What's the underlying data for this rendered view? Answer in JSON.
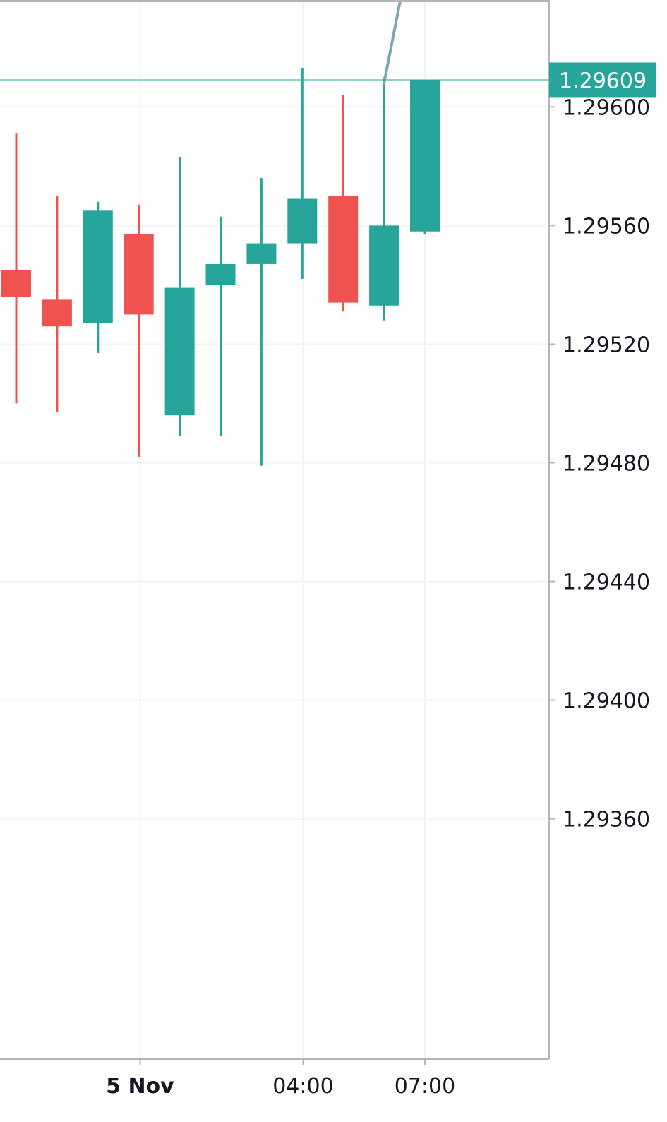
{
  "chart_data": {
    "type": "candlestick",
    "title": "",
    "xlabel": "",
    "ylabel": "",
    "ylim": [
      1.29279,
      1.29636
    ],
    "y_ticks": [
      "1.29600",
      "1.29560",
      "1.29520",
      "1.29480",
      "1.29440",
      "1.29400",
      "1.29360"
    ],
    "x_ticks": [
      {
        "label": "5 Nov",
        "bold": true,
        "bar": 3.03
      },
      {
        "label": "04:00",
        "bold": false,
        "bar": 7.02
      },
      {
        "label": "07:00",
        "bold": false,
        "bar": 10.0
      }
    ],
    "current_price": "1.29609",
    "colors": {
      "up": "#26a69a",
      "down": "#ef5350",
      "grid": "#f0f3fa",
      "axis": "#b2b5be",
      "price_tag": "#26a69a",
      "text": "#131722",
      "drawing_line": "#7ea8b0"
    },
    "candles": [
      {
        "open": 1.29545,
        "high": 1.29591,
        "low": 1.295,
        "close": 1.29536
      },
      {
        "open": 1.29535,
        "high": 1.2957,
        "low": 1.29497,
        "close": 1.29526
      },
      {
        "open": 1.29527,
        "high": 1.29568,
        "low": 1.29517,
        "close": 1.29565
      },
      {
        "open": 1.29557,
        "high": 1.29567,
        "low": 1.29482,
        "close": 1.2953
      },
      {
        "open": 1.29496,
        "high": 1.29583,
        "low": 1.29489,
        "close": 1.29539
      },
      {
        "open": 1.2954,
        "high": 1.29563,
        "low": 1.29489,
        "close": 1.29547
      },
      {
        "open": 1.29547,
        "high": 1.29576,
        "low": 1.29479,
        "close": 1.29554
      },
      {
        "open": 1.29554,
        "high": 1.29613,
        "low": 1.29542,
        "close": 1.29569
      },
      {
        "open": 1.2957,
        "high": 1.29604,
        "low": 1.29531,
        "close": 1.29534
      },
      {
        "open": 1.29533,
        "high": 1.2961,
        "low": 1.29528,
        "close": 1.2956
      },
      {
        "open": 1.29558,
        "high": 1.29609,
        "low": 1.29557,
        "close": 1.29609
      }
    ],
    "drawing": {
      "type": "trend-line",
      "from": {
        "bar": 9.0,
        "price": 1.29608
      },
      "to": {
        "bar": 9.4,
        "price": 1.29636
      }
    }
  }
}
